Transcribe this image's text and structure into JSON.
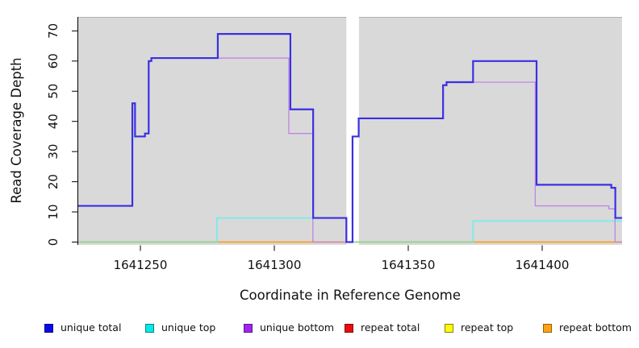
{
  "legend": {
    "items": [
      {
        "label": "unique total",
        "fill": "#0b0bea",
        "border": "#04048e"
      },
      {
        "label": "unique top",
        "fill": "#06e9e9",
        "border": "#058484"
      },
      {
        "label": "unique bottom",
        "fill": "#a124f0",
        "border": "#5c1390"
      },
      {
        "label": "repeat total",
        "fill": "#e80d0d",
        "border": "#860707"
      },
      {
        "label": "repeat top",
        "fill": "#fbfb0b",
        "border": "#868606"
      },
      {
        "label": "repeat bottom",
        "fill": "#ffa312",
        "border": "#93610b"
      }
    ]
  },
  "chart_data": {
    "type": "line",
    "subtype": "step-coverage-plot",
    "title": "",
    "xlabel": "Coordinate in Reference Genome",
    "ylabel": "Read Coverage Depth",
    "xlim": [
      1641226.8,
      1641429.8
    ],
    "ylim": [
      0,
      70
    ],
    "grid": false,
    "legend_position": "bottom",
    "x_ticks": [
      1641250,
      1641300,
      1641350,
      1641400
    ],
    "x_tick_labels": [
      "1641250",
      "1641300",
      "1641350",
      "1641400"
    ],
    "y_ticks": [
      0,
      10,
      20,
      30,
      40,
      50,
      60,
      70
    ],
    "y_tick_labels": [
      "0",
      "10",
      "20",
      "30",
      "40",
      "50",
      "60",
      "70"
    ],
    "panel_background": "#d9d9d9",
    "panel_top_border": "#b0b0b0",
    "panels": [
      {
        "from": 1641226.8,
        "to": 1641326.9
      },
      {
        "from": 1641331.6,
        "to": 1641429.8
      }
    ],
    "gap": {
      "from": 1641326.9,
      "to": 1641331.6,
      "color": "#ffffff"
    },
    "series": [
      {
        "name": "unique total",
        "line_color": "#3a30e2",
        "line_width": 2.2,
        "start_x": 1641226.8,
        "start_y": 12,
        "steps": [
          [
            1641247,
            46
          ],
          [
            1641248,
            35
          ],
          [
            1641251.7,
            36
          ],
          [
            1641253.1,
            60
          ],
          [
            1641254.1,
            61
          ],
          [
            1641278.9,
            69
          ],
          [
            1641306,
            44
          ],
          [
            1641314.5,
            8
          ],
          [
            1641326.9,
            0
          ],
          [
            1641329.2,
            35
          ],
          [
            1641331.5,
            41
          ],
          [
            1641363,
            52
          ],
          [
            1641364.3,
            53
          ],
          [
            1641374.2,
            60
          ],
          [
            1641397.9,
            19
          ],
          [
            1641425.8,
            18
          ],
          [
            1641427.3,
            8
          ]
        ],
        "end_x": 1641429.8
      },
      {
        "name": "unique top",
        "line_color": "#74ecec",
        "line_width": 1.6,
        "start_x": 1641226.8,
        "start_y": 0,
        "steps": [
          [
            1641278.6,
            8
          ],
          [
            1641326.9,
            0
          ],
          [
            1641374.2,
            7
          ]
        ],
        "end_x": 1641429.8
      },
      {
        "name": "unique bottom",
        "line_color": "#bf86e3",
        "line_width": 1.3,
        "start_x": 1641226.8,
        "start_y": 12,
        "steps": [
          [
            1641247,
            46
          ],
          [
            1641248,
            35
          ],
          [
            1641251.7,
            36
          ],
          [
            1641253.1,
            60
          ],
          [
            1641254.1,
            61
          ],
          [
            1641305.4,
            36
          ],
          [
            1641314.4,
            0
          ],
          [
            1641329.2,
            35
          ],
          [
            1641331.5,
            41
          ],
          [
            1641363,
            52
          ],
          [
            1641364.3,
            53
          ],
          [
            1641397.4,
            12
          ],
          [
            1641424.9,
            11
          ],
          [
            1641427.2,
            0
          ]
        ],
        "end_x": 1641429.8
      },
      {
        "name": "repeat total",
        "line_color": "#e80d0d",
        "line_width": 1.3,
        "start_x": 1641226.8,
        "start_y": 0,
        "steps": [],
        "end_x": 1641429.8
      },
      {
        "name": "repeat top",
        "line_color": "#fbfb0b",
        "line_width": 1.3,
        "start_x": 1641226.8,
        "start_y": 0,
        "steps": [],
        "end_x": 1641429.8
      },
      {
        "name": "repeat bottom",
        "line_color": "#ff9d23",
        "line_width": 1.6,
        "start_x": 1641226.8,
        "start_y": 0,
        "steps": [],
        "end_x": 1641429.8
      }
    ],
    "zero_overlap_render": [
      {
        "from": 1641226.8,
        "to": 1641278.6,
        "color": "#8fd692"
      },
      {
        "from": 1641326.9,
        "to": 1641374.2,
        "color": "#8fd692"
      }
    ]
  }
}
